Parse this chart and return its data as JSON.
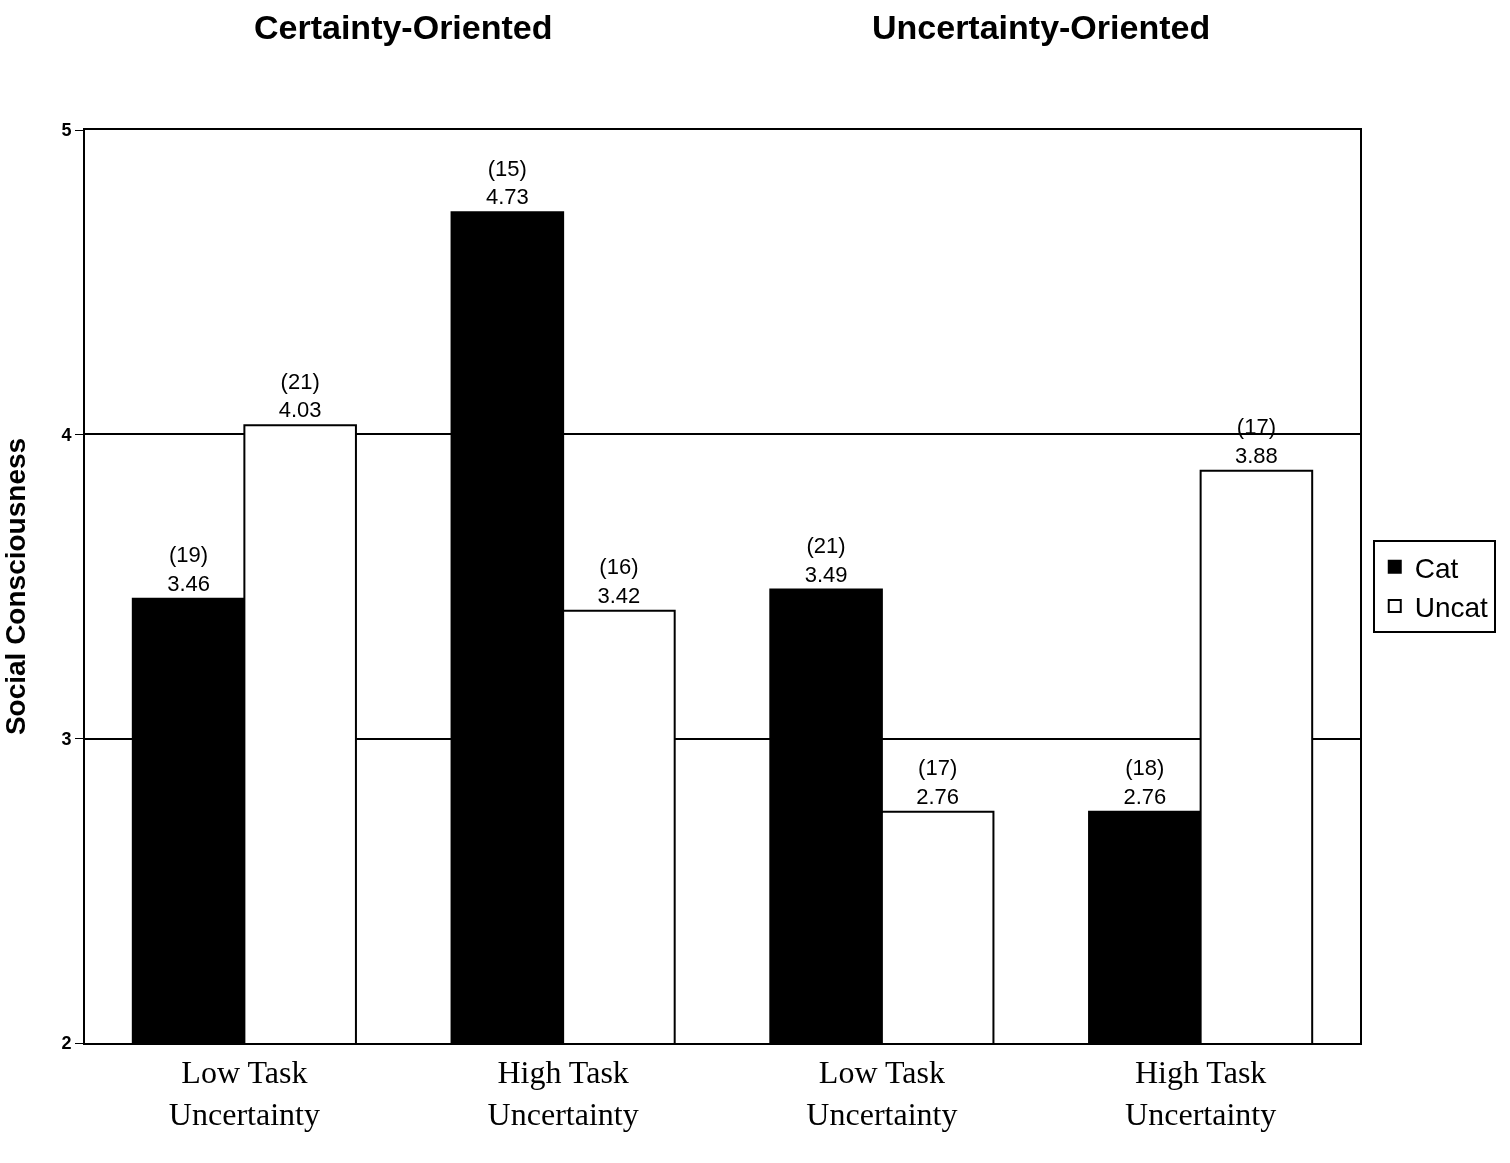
{
  "chart_data": {
    "type": "bar",
    "ylabel": "Social Consciousness",
    "annotations": [
      "Certainty-Oriented",
      "Uncertainty-Oriented"
    ],
    "categories": [
      "Low Task\nUncertainty",
      "High Task\nUncertainty",
      "Low Task\nUncertainty",
      "High Task\nUncertainty"
    ],
    "series": [
      {
        "name": "Cat",
        "color": "#000000",
        "values": [
          3.46,
          4.73,
          3.49,
          2.76
        ],
        "value_labels": [
          "(19)\n3.46",
          "(15)\n4.73",
          "(21)\n3.49",
          "(18)\n2.76"
        ]
      },
      {
        "name": "Uncat",
        "color": "#ffffff",
        "values": [
          4.03,
          3.42,
          2.76,
          3.88
        ],
        "value_labels": [
          "(21)\n4.03",
          "(16)\n3.42",
          "(17)\n2.76",
          "(17)\n3.88"
        ]
      }
    ],
    "ylim": [
      2,
      5
    ],
    "yticks": [
      2,
      3,
      4,
      5
    ],
    "grid": "y",
    "legend": "right"
  }
}
